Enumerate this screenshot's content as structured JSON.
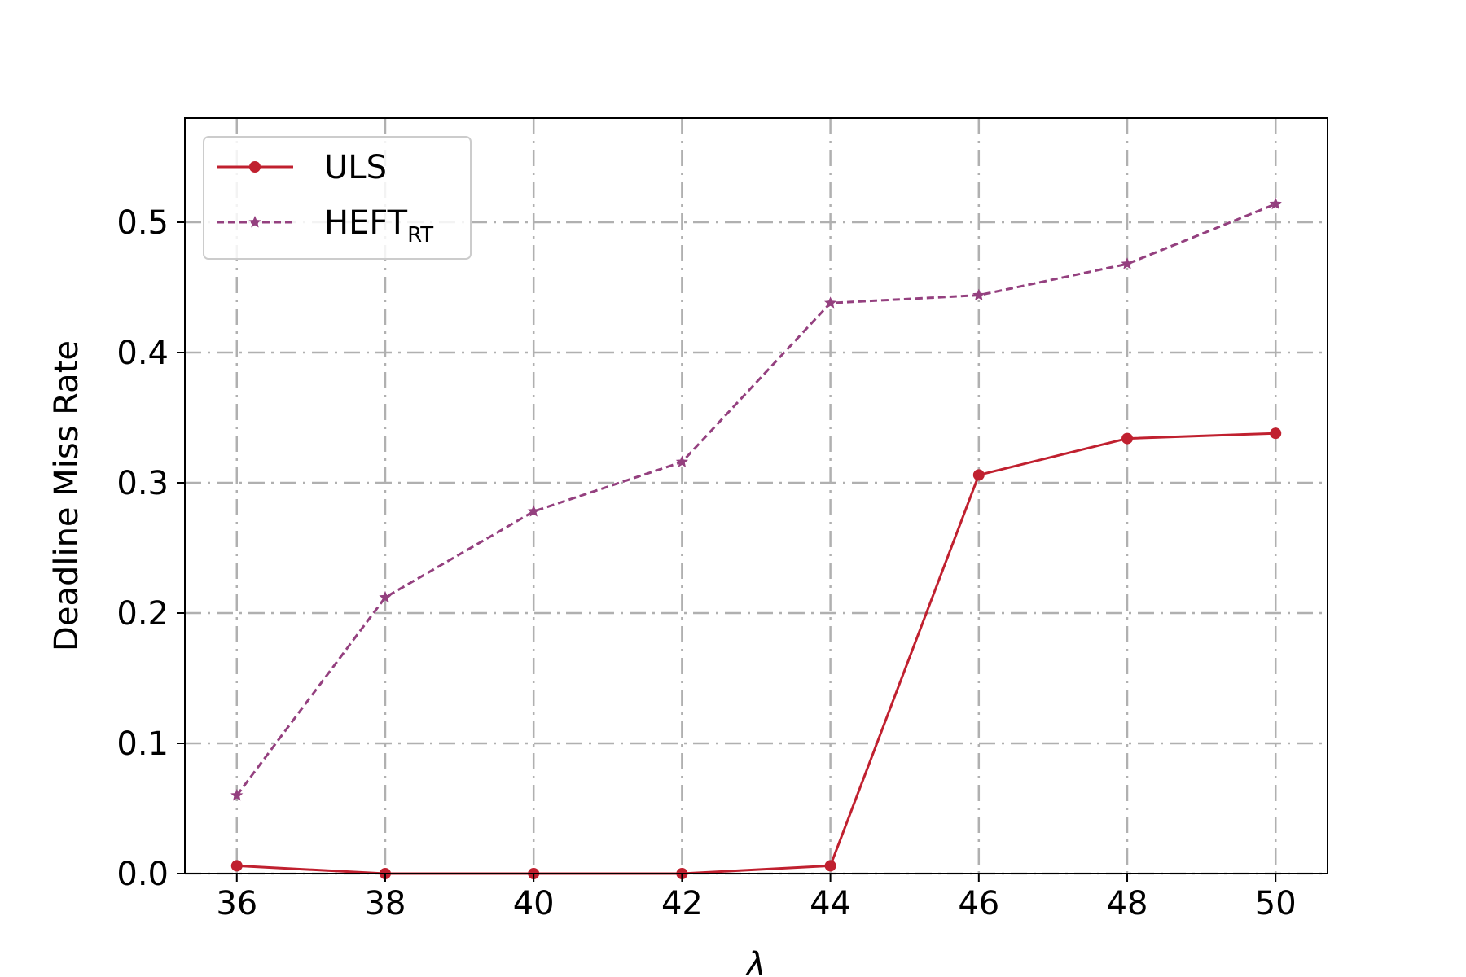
{
  "chart_data": {
    "type": "line",
    "title": "",
    "xlabel": "λ",
    "ylabel": "Deadline Miss Rate",
    "x": [
      36,
      38,
      40,
      42,
      44,
      46,
      48,
      50
    ],
    "xticks": [
      "36",
      "38",
      "40",
      "42",
      "44",
      "46",
      "48",
      "50"
    ],
    "yticks": [
      "0.0",
      "0.1",
      "0.2",
      "0.3",
      "0.4",
      "0.5"
    ],
    "ylim": [
      0,
      0.58
    ],
    "xlim": [
      35.3,
      50.7
    ],
    "grid": true,
    "legend_position": "top-left",
    "series": [
      {
        "name": "ULS",
        "values": [
          0.006,
          0.0,
          0.0,
          0.0,
          0.006,
          0.306,
          0.334,
          0.338
        ],
        "color": "#c0202f",
        "style": "solid",
        "marker": "circle"
      },
      {
        "name": "HEFT",
        "name_subscript": "RT",
        "values": [
          0.06,
          0.212,
          0.278,
          0.316,
          0.438,
          0.444,
          0.468,
          0.514
        ],
        "color": "#94407f",
        "style": "dashed",
        "marker": "star"
      }
    ]
  }
}
